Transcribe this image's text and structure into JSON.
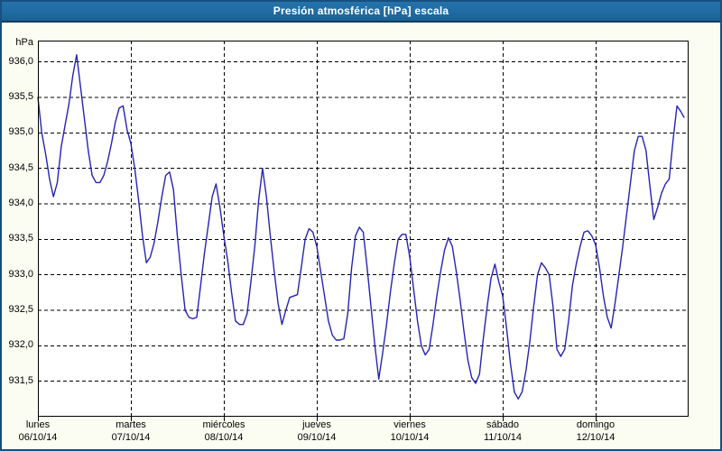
{
  "window": {
    "title": "Presión atmosférica [hPa] escala"
  },
  "colors": {
    "titlebar_bg": "#1f6ba3",
    "titlebar_text": "#ffffff",
    "window_border": "#17507f",
    "window_bg": "#fcfdf2",
    "plot_bg": "#ffffff",
    "grid": "#000000",
    "line": "#2424b4",
    "label_text": "#000000"
  },
  "chart_data": {
    "type": "line",
    "title": "Presión atmosférica [hPa] escala",
    "ylabel": "hPa",
    "xlabel": "",
    "grid": "dashed",
    "legend_position": "none",
    "ylim": [
      931.0,
      936.3
    ],
    "y_ticks": [
      {
        "value": 936.0,
        "label": "936,0"
      },
      {
        "value": 935.5,
        "label": "935,5"
      },
      {
        "value": 935.0,
        "label": "935,0"
      },
      {
        "value": 934.5,
        "label": "934,5"
      },
      {
        "value": 934.0,
        "label": "934,0"
      },
      {
        "value": 933.5,
        "label": "933,5"
      },
      {
        "value": 933.0,
        "label": "933,0"
      },
      {
        "value": 932.5,
        "label": "932,5"
      },
      {
        "value": 932.0,
        "label": "932,0"
      },
      {
        "value": 931.5,
        "label": "931,5"
      }
    ],
    "x_total_hours": 168,
    "x_days": [
      {
        "name": "lunes",
        "date": "06/10/14",
        "hour": 0
      },
      {
        "name": "martes",
        "date": "07/10/14",
        "hour": 24
      },
      {
        "name": "miércoles",
        "date": "08/10/14",
        "hour": 48
      },
      {
        "name": "jueves",
        "date": "09/10/14",
        "hour": 72
      },
      {
        "name": "viernes",
        "date": "10/10/14",
        "hour": 96
      },
      {
        "name": "sábado",
        "date": "11/10/14",
        "hour": 120
      },
      {
        "name": "domingo",
        "date": "12/10/14",
        "hour": 144
      }
    ],
    "series": [
      {
        "name": "Presión atmosférica",
        "unit": "hPa",
        "color": "#2424b4",
        "points": [
          [
            0,
            935.5
          ],
          [
            1,
            935.0
          ],
          [
            2,
            934.7
          ],
          [
            3,
            934.35
          ],
          [
            4,
            934.1
          ],
          [
            5,
            934.3
          ],
          [
            6,
            934.8
          ],
          [
            7,
            935.1
          ],
          [
            8,
            935.4
          ],
          [
            9,
            935.8
          ],
          [
            10,
            936.1
          ],
          [
            11,
            935.65
          ],
          [
            12,
            935.2
          ],
          [
            13,
            934.75
          ],
          [
            14,
            934.4
          ],
          [
            15,
            934.3
          ],
          [
            16,
            934.3
          ],
          [
            17,
            934.4
          ],
          [
            18,
            934.6
          ],
          [
            19,
            934.85
          ],
          [
            20,
            935.15
          ],
          [
            21,
            935.35
          ],
          [
            22,
            935.38
          ],
          [
            23,
            935.05
          ],
          [
            24,
            934.85
          ],
          [
            25,
            934.5
          ],
          [
            26,
            934.05
          ],
          [
            27,
            933.55
          ],
          [
            28,
            933.17
          ],
          [
            29,
            933.25
          ],
          [
            30,
            933.45
          ],
          [
            31,
            933.75
          ],
          [
            32,
            934.1
          ],
          [
            33,
            934.4
          ],
          [
            34,
            934.45
          ],
          [
            35,
            934.2
          ],
          [
            36,
            933.55
          ],
          [
            37,
            933.0
          ],
          [
            38,
            932.5
          ],
          [
            39,
            932.4
          ],
          [
            40,
            932.38
          ],
          [
            41,
            932.4
          ],
          [
            42,
            932.85
          ],
          [
            43,
            933.3
          ],
          [
            44,
            933.7
          ],
          [
            45,
            934.1
          ],
          [
            46,
            934.28
          ],
          [
            47,
            933.95
          ],
          [
            48,
            933.55
          ],
          [
            49,
            933.2
          ],
          [
            50,
            932.75
          ],
          [
            51,
            932.35
          ],
          [
            52,
            932.3
          ],
          [
            53,
            932.3
          ],
          [
            54,
            932.45
          ],
          [
            55,
            932.9
          ],
          [
            56,
            933.4
          ],
          [
            57,
            934.05
          ],
          [
            58,
            934.5
          ],
          [
            59,
            934.1
          ],
          [
            60,
            933.55
          ],
          [
            61,
            933.05
          ],
          [
            62,
            932.6
          ],
          [
            63,
            932.3
          ],
          [
            64,
            932.5
          ],
          [
            65,
            932.68
          ],
          [
            66,
            932.7
          ],
          [
            67,
            932.72
          ],
          [
            68,
            933.1
          ],
          [
            69,
            933.5
          ],
          [
            70,
            933.65
          ],
          [
            71,
            933.6
          ],
          [
            72,
            933.4
          ],
          [
            73,
            933.05
          ],
          [
            74,
            932.7
          ],
          [
            75,
            932.35
          ],
          [
            76,
            932.15
          ],
          [
            77,
            932.08
          ],
          [
            78,
            932.08
          ],
          [
            79,
            932.1
          ],
          [
            80,
            932.45
          ],
          [
            81,
            933.1
          ],
          [
            82,
            933.55
          ],
          [
            83,
            933.67
          ],
          [
            84,
            933.6
          ],
          [
            85,
            933.1
          ],
          [
            86,
            932.55
          ],
          [
            87,
            932.0
          ],
          [
            88,
            931.53
          ],
          [
            89,
            931.9
          ],
          [
            90,
            932.3
          ],
          [
            91,
            932.75
          ],
          [
            92,
            933.15
          ],
          [
            93,
            933.5
          ],
          [
            94,
            933.57
          ],
          [
            95,
            933.57
          ],
          [
            96,
            933.25
          ],
          [
            97,
            932.8
          ],
          [
            98,
            932.35
          ],
          [
            99,
            932.0
          ],
          [
            100,
            931.87
          ],
          [
            101,
            931.95
          ],
          [
            102,
            932.3
          ],
          [
            103,
            932.7
          ],
          [
            104,
            933.05
          ],
          [
            105,
            933.35
          ],
          [
            106,
            933.52
          ],
          [
            107,
            933.4
          ],
          [
            108,
            933.05
          ],
          [
            109,
            932.65
          ],
          [
            110,
            932.2
          ],
          [
            111,
            931.8
          ],
          [
            112,
            931.55
          ],
          [
            113,
            931.47
          ],
          [
            114,
            931.6
          ],
          [
            115,
            932.1
          ],
          [
            116,
            932.55
          ],
          [
            117,
            932.95
          ],
          [
            118,
            933.15
          ],
          [
            119,
            932.9
          ],
          [
            120,
            932.7
          ],
          [
            121,
            932.25
          ],
          [
            122,
            931.75
          ],
          [
            123,
            931.35
          ],
          [
            124,
            931.25
          ],
          [
            125,
            931.35
          ],
          [
            126,
            931.65
          ],
          [
            127,
            932.05
          ],
          [
            128,
            932.55
          ],
          [
            129,
            933.0
          ],
          [
            130,
            933.17
          ],
          [
            131,
            933.1
          ],
          [
            132,
            933.0
          ],
          [
            133,
            932.55
          ],
          [
            134,
            931.95
          ],
          [
            135,
            931.85
          ],
          [
            136,
            931.95
          ],
          [
            137,
            932.35
          ],
          [
            138,
            932.85
          ],
          [
            139,
            933.15
          ],
          [
            140,
            933.4
          ],
          [
            141,
            933.6
          ],
          [
            142,
            933.62
          ],
          [
            143,
            933.55
          ],
          [
            144,
            933.42
          ],
          [
            145,
            933.1
          ],
          [
            146,
            932.7
          ],
          [
            147,
            932.4
          ],
          [
            148,
            932.25
          ],
          [
            149,
            932.6
          ],
          [
            150,
            933.0
          ],
          [
            151,
            933.4
          ],
          [
            152,
            933.85
          ],
          [
            153,
            934.3
          ],
          [
            154,
            934.75
          ],
          [
            155,
            934.95
          ],
          [
            156,
            934.95
          ],
          [
            157,
            934.75
          ],
          [
            158,
            934.25
          ],
          [
            159,
            933.78
          ],
          [
            160,
            933.95
          ],
          [
            161,
            934.15
          ],
          [
            162,
            934.28
          ],
          [
            163,
            934.35
          ],
          [
            164,
            934.9
          ],
          [
            165,
            935.38
          ],
          [
            166,
            935.3
          ],
          [
            166.8,
            935.22
          ]
        ]
      }
    ]
  }
}
